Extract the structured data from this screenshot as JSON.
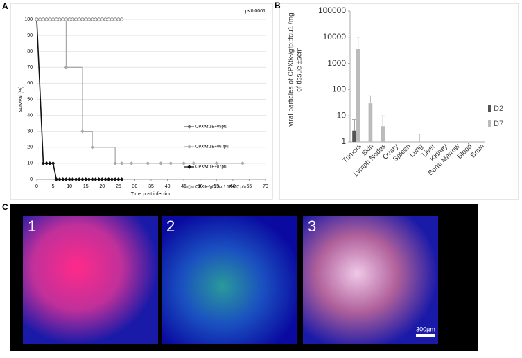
{
  "figure": {
    "panel_labels": [
      "A",
      "B",
      "C"
    ],
    "image_labels": [
      "1",
      "2",
      "3"
    ],
    "scale_bar": "300µm"
  },
  "chart_data": [
    {
      "type": "line",
      "annotation": "p<0.0001",
      "xlabel": "Time post infection",
      "ylabel": "Survival (%)",
      "xlim": [
        0,
        70
      ],
      "xticks": [
        0,
        5,
        10,
        15,
        20,
        25,
        30,
        35,
        40,
        45,
        50,
        55,
        60,
        65,
        70
      ],
      "ylim": [
        0,
        100
      ],
      "yticks": [
        0,
        10,
        20,
        30,
        40,
        50,
        60,
        70,
        80,
        90,
        100
      ],
      "legend": "right",
      "series": [
        {
          "name": "CPXwt 1E+05pfu",
          "color": "#666666",
          "marker": "diamond",
          "step": false,
          "x": [
            0,
            1,
            2,
            3,
            4,
            5,
            6,
            7,
            8,
            9,
            10,
            11,
            12,
            13,
            14,
            15,
            16,
            17,
            18,
            19,
            20,
            21,
            22,
            23,
            24,
            25,
            26
          ],
          "values": [
            100,
            100,
            100,
            100,
            100,
            100,
            100,
            100,
            100,
            100,
            100,
            100,
            100,
            100,
            100,
            100,
            100,
            100,
            100,
            100,
            100,
            100,
            100,
            100,
            100,
            100,
            100
          ]
        },
        {
          "name": "CPXwt 1E+06 fpu",
          "color": "#aaaaaa",
          "marker": "diamond",
          "step": true,
          "x": [
            0,
            9,
            14,
            17,
            24,
            26,
            29,
            34,
            38,
            41,
            45,
            48,
            55,
            63
          ],
          "values": [
            100,
            70,
            30,
            20,
            10,
            10,
            10,
            10,
            10,
            10,
            10,
            10,
            10,
            10
          ]
        },
        {
          "name": "CPXwt 1E+07pfu",
          "color": "#111111",
          "marker": "diamond",
          "step": false,
          "x": [
            0,
            2,
            3,
            4,
            5,
            6,
            7,
            8,
            9,
            10,
            11,
            12,
            13,
            14,
            15,
            16,
            17,
            18,
            19,
            20,
            21,
            22,
            23,
            24,
            25,
            26
          ],
          "values": [
            100,
            10,
            10,
            10,
            10,
            0,
            0,
            0,
            0,
            0,
            0,
            0,
            0,
            0,
            0,
            0,
            0,
            0,
            0,
            0,
            0,
            0,
            0,
            0,
            0,
            0
          ]
        },
        {
          "name": "CPXtk-/gfp::fcu1 1E+07 pfu",
          "color": "#888888",
          "marker": "circle",
          "step": false,
          "x": [
            0,
            1,
            2,
            3,
            4,
            5,
            6,
            7,
            8,
            9,
            10,
            11,
            12,
            13,
            14,
            15,
            16,
            17,
            18,
            19,
            20,
            21,
            22,
            23,
            24,
            25,
            26
          ],
          "values": [
            100,
            100,
            100,
            100,
            100,
            100,
            100,
            100,
            100,
            100,
            100,
            100,
            100,
            100,
            100,
            100,
            100,
            100,
            100,
            100,
            100,
            100,
            100,
            100,
            100,
            100,
            100
          ]
        }
      ]
    },
    {
      "type": "bar",
      "log_scale": true,
      "ylabel": [
        "viral particles of CPXtk-/gfp::fcu1 /mg",
        "of tissue ±sem"
      ],
      "categories": [
        "Tumors",
        "Skin",
        "Lymph Nodes",
        "Ovary",
        "Spleen",
        "Lung",
        "Liver",
        "Kidney",
        "Bone Marrow",
        "Blood",
        "Brain"
      ],
      "ylim": [
        1,
        100000
      ],
      "yticks": [
        1,
        10,
        100,
        1000,
        10000,
        100000
      ],
      "legend": "right",
      "series": [
        {
          "name": "D2",
          "color": "#555555",
          "values": [
            2.7,
            null,
            null,
            null,
            null,
            null,
            null,
            null,
            null,
            null,
            null
          ],
          "errors": [
            4.3,
            null,
            null,
            null,
            null,
            null,
            null,
            null,
            null,
            null,
            null
          ]
        },
        {
          "name": "D7",
          "color": "#bbbbbb",
          "values": [
            3500,
            30,
            4,
            null,
            null,
            1,
            null,
            null,
            null,
            null,
            null
          ],
          "errors": [
            6500,
            28,
            6,
            null,
            null,
            1,
            null,
            null,
            null,
            null,
            null
          ]
        }
      ]
    }
  ]
}
